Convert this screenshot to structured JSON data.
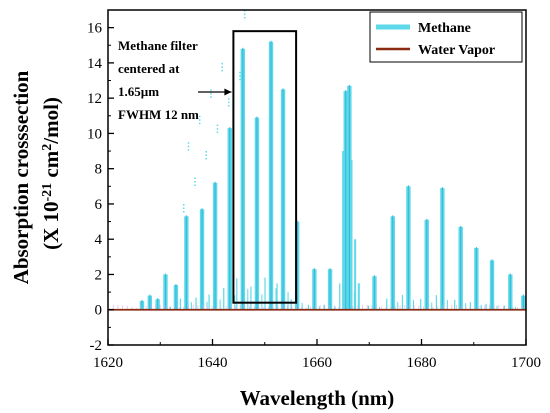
{
  "chart_data": {
    "type": "line",
    "xlabel": "Wavelength (nm)",
    "ylabel_parts": {
      "line1": "Absorption crosssection",
      "line2_pre": "(X 10",
      "line2_exp1": "-21",
      "line2_mid": " cm",
      "line2_exp2": "2",
      "line2_post": "/mol)"
    },
    "xlim": [
      1620,
      1700
    ],
    "ylim": [
      -2,
      17
    ],
    "xticks": [
      1620,
      1640,
      1660,
      1680,
      1700
    ],
    "yticks": [
      -2,
      0,
      2,
      4,
      6,
      8,
      10,
      12,
      14,
      16
    ],
    "grid": false,
    "legend_position": "top-right",
    "series": [
      {
        "name": "Methane",
        "color": "#5dd9ea",
        "peaks": [
          {
            "x": 1626.5,
            "y": 0.5
          },
          {
            "x": 1628.0,
            "y": 0.8
          },
          {
            "x": 1629.5,
            "y": 0.6
          },
          {
            "x": 1631.0,
            "y": 2.0
          },
          {
            "x": 1633.0,
            "y": 1.4
          },
          {
            "x": 1635.0,
            "y": 5.3
          },
          {
            "x": 1638.0,
            "y": 5.7
          },
          {
            "x": 1640.5,
            "y": 7.2
          },
          {
            "x": 1643.3,
            "y": 10.3
          },
          {
            "x": 1645.8,
            "y": 14.8
          },
          {
            "x": 1648.5,
            "y": 10.9
          },
          {
            "x": 1651.2,
            "y": 15.2
          },
          {
            "x": 1653.5,
            "y": 12.5
          },
          {
            "x": 1656.2,
            "y": 5.0
          },
          {
            "x": 1659.5,
            "y": 2.3
          },
          {
            "x": 1662.5,
            "y": 2.3
          },
          {
            "x": 1665.5,
            "y": 12.4
          },
          {
            "x": 1666.2,
            "y": 12.7
          },
          {
            "x": 1671.0,
            "y": 1.9
          },
          {
            "x": 1674.5,
            "y": 5.3
          },
          {
            "x": 1677.5,
            "y": 7.0
          },
          {
            "x": 1681.0,
            "y": 5.1
          },
          {
            "x": 1684.0,
            "y": 6.9
          },
          {
            "x": 1687.5,
            "y": 4.7
          },
          {
            "x": 1690.5,
            "y": 3.5
          },
          {
            "x": 1693.5,
            "y": 2.8
          },
          {
            "x": 1697.0,
            "y": 2.0
          },
          {
            "x": 1699.5,
            "y": 0.8
          }
        ]
      },
      {
        "name": "Water Vapor",
        "color": "#8b2a10",
        "values": [
          0,
          0
        ]
      }
    ],
    "annotation": {
      "text_lines": [
        "Methane filter",
        "centered at",
        "1.65µm",
        "FWHM 12 nm"
      ],
      "box": {
        "x0": 1644.0,
        "x1": 1656.0,
        "y0": 0.4,
        "y1": 15.8
      }
    }
  }
}
